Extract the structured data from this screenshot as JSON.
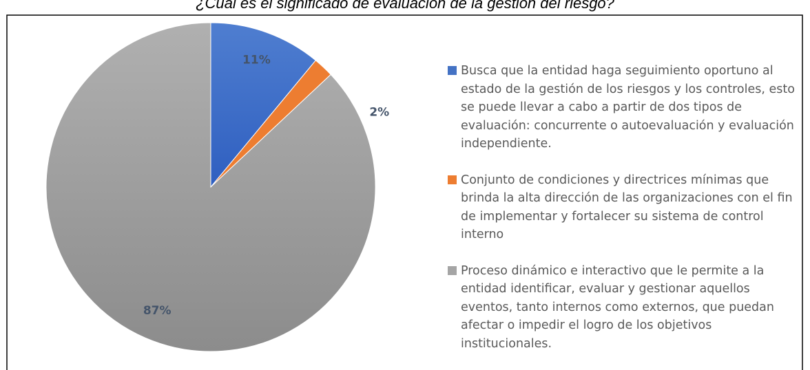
{
  "chart_data": {
    "type": "pie",
    "title": "¿Cuál es el significado de evaluación de la gestión del riesgo?",
    "categories": [
      "Busca que la entidad haga seguimiento oportuno al estado de la gestión de los riesgos y los controles, esto se puede llevar a cabo a partir de dos tipos de evaluación: concurrente o autoevaluación y evaluación independiente.",
      "Conjunto de condiciones y directrices mínimas que brinda la alta dirección de las organizaciones con el fin de implementar y fortalecer su sistema de control interno",
      "Proceso dinámico e interactivo que le permite a la entidad identificar, evaluar y gestionar aquellos eventos, tanto internos como externos, que puedan afectar o impedir el logro de los objetivos institucionales."
    ],
    "values": [
      11,
      2,
      87
    ],
    "value_labels": [
      "11%",
      "2%",
      "87%"
    ],
    "colors": [
      "#4472c4",
      "#ed7d31",
      "#a5a5a5"
    ],
    "legend": "right"
  }
}
